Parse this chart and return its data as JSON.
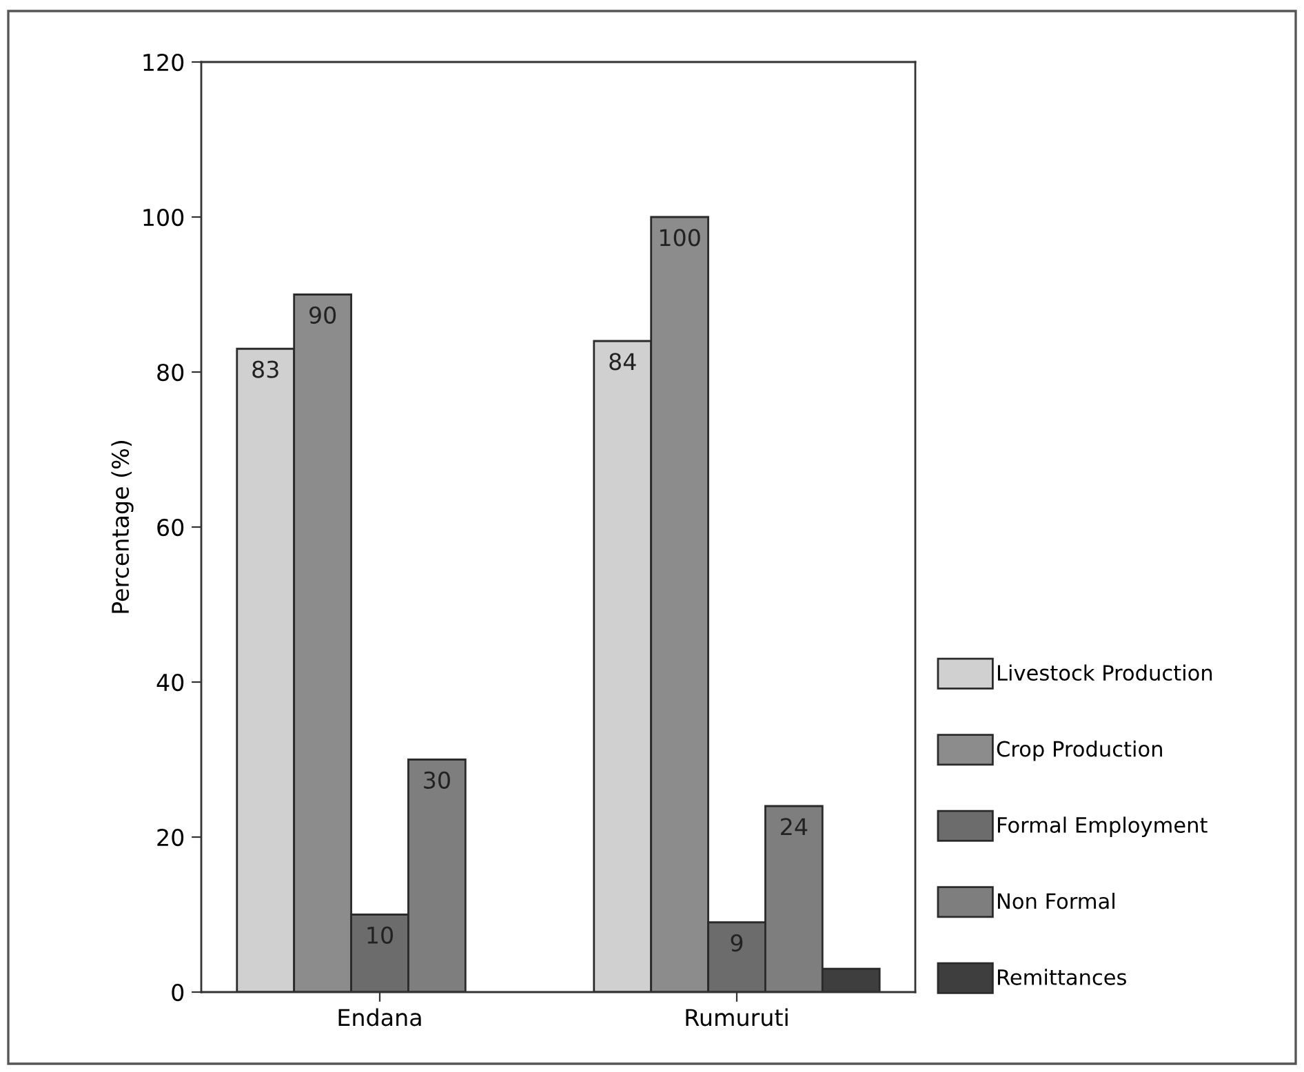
{
  "chart_data": {
    "type": "bar",
    "ylabel": "Percentage (%)",
    "categories": [
      "Endana",
      "Rumuruti"
    ],
    "series": [
      {
        "name": "Livestock Production",
        "color": "#d0d0d0",
        "values": [
          83,
          84
        ],
        "value_labels": [
          "83",
          "84"
        ]
      },
      {
        "name": "Crop Production",
        "color": "#8c8c8c",
        "values": [
          90,
          100
        ],
        "value_labels": [
          "90",
          "100"
        ]
      },
      {
        "name": "Formal Employment",
        "color": "#6c6c6c",
        "values": [
          10,
          9
        ],
        "value_labels": [
          "10",
          "9"
        ]
      },
      {
        "name": "Non Formal",
        "color": "#7e7e7e",
        "values": [
          30,
          24
        ],
        "value_labels": [
          "30",
          "24"
        ]
      },
      {
        "name": "Remittances",
        "color": "#3e3e3e",
        "values": [
          null,
          3
        ],
        "value_labels": [
          null,
          null
        ]
      }
    ],
    "ylim": [
      0,
      120
    ],
    "yticks": [
      0,
      20,
      40,
      60,
      80,
      100,
      120
    ],
    "grid": false,
    "legend": "right"
  }
}
